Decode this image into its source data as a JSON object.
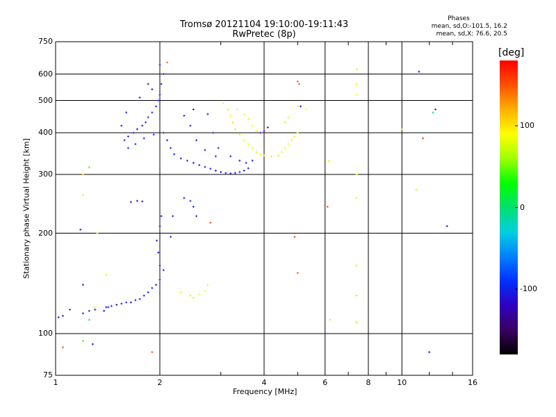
{
  "chart_data": {
    "type": "scatter",
    "title": "Tromsø 20121104 19:10:00-19:11:43",
    "subtitle": "RwPretec (8p)",
    "xlabel": "Frequency [MHz]",
    "ylabel": "Stationary phase Virtual Height [km]",
    "x_scale": "log",
    "y_scale": "log",
    "xlim": [
      1,
      16
    ],
    "ylim": [
      75,
      750
    ],
    "x_ticks": [
      "1",
      "2",
      "4",
      "6",
      "8",
      "10",
      "16"
    ],
    "x_tick_values": [
      1,
      2,
      4,
      6,
      8,
      10,
      16
    ],
    "x_grid_values": [
      2,
      4,
      6,
      8,
      10
    ],
    "x_minor_ticks": [
      3,
      5,
      7,
      9,
      12,
      14
    ],
    "y_ticks": [
      "75",
      "100",
      "200",
      "300",
      "400",
      "500",
      "600",
      "750"
    ],
    "y_tick_values": [
      75,
      100,
      200,
      300,
      400,
      500,
      600,
      750
    ],
    "y_grid_values": [
      100,
      200,
      300,
      400,
      500,
      600
    ],
    "grid": true,
    "colorbar": {
      "unit": "[deg]",
      "ticks": [
        "100",
        "0",
        "-100"
      ],
      "tick_values": [
        100,
        0,
        -100
      ],
      "range": [
        -180,
        180
      ],
      "colors": [
        "#000000",
        "#3a0060",
        "#3000c0",
        "#0030ff",
        "#0080ff",
        "#00d0e0",
        "#00e070",
        "#00ff00",
        "#a0ff00",
        "#ffff00",
        "#ffb000",
        "#ff5000",
        "#ff0000"
      ]
    },
    "stats": {
      "heading": "Phases",
      "line1": "mean, sd,O:-101.5, 16.2",
      "line2": "mean, sd,X:  76.6, 20.5"
    },
    "series": [
      {
        "values": [
          [
            1.02,
            112,
            -110
          ],
          [
            1.05,
            113,
            -100
          ],
          [
            1.1,
            118,
            -90
          ],
          [
            1.2,
            115,
            -105
          ],
          [
            1.25,
            117,
            -110
          ],
          [
            1.3,
            118,
            -95
          ],
          [
            1.38,
            117,
            -120
          ],
          [
            1.4,
            120,
            -110
          ],
          [
            1.45,
            121,
            -100
          ],
          [
            1.5,
            122,
            -115
          ],
          [
            1.55,
            123,
            -105
          ],
          [
            1.6,
            124,
            -100
          ],
          [
            1.65,
            124,
            -120
          ],
          [
            1.7,
            126,
            -110
          ],
          [
            1.75,
            127,
            -95
          ],
          [
            1.8,
            130,
            -115
          ],
          [
            1.85,
            133,
            -105
          ],
          [
            1.9,
            137,
            -100
          ],
          [
            1.95,
            140,
            -110
          ],
          [
            2.0,
            145,
            -100
          ],
          [
            2.0,
            160,
            -120
          ],
          [
            1.98,
            175,
            -110
          ],
          [
            1.96,
            190,
            -105
          ],
          [
            2.0,
            210,
            -115
          ],
          [
            2.02,
            225,
            -100
          ],
          [
            1.72,
            250,
            -120
          ],
          [
            1.78,
            249,
            -110
          ],
          [
            1.65,
            248,
            -105
          ],
          [
            2.35,
            255,
            -110
          ],
          [
            2.45,
            250,
            -100
          ],
          [
            2.5,
            240,
            -95
          ],
          [
            2.55,
            225,
            -120
          ],
          [
            1.58,
            380,
            -110
          ],
          [
            1.62,
            390,
            -105
          ],
          [
            1.68,
            400,
            -100
          ],
          [
            1.72,
            410,
            -115
          ],
          [
            1.78,
            420,
            -110
          ],
          [
            1.82,
            430,
            -100
          ],
          [
            1.85,
            445,
            -105
          ],
          [
            1.9,
            460,
            -110
          ],
          [
            1.95,
            480,
            -100
          ],
          [
            1.98,
            500,
            -95
          ],
          [
            2.0,
            520,
            -120
          ],
          [
            2.02,
            560,
            -105
          ],
          [
            2.05,
            600,
            -110
          ],
          [
            2.0,
            640,
            -100
          ],
          [
            1.85,
            560,
            -115
          ],
          [
            1.9,
            540,
            -110
          ],
          [
            1.75,
            510,
            -105
          ],
          [
            1.6,
            460,
            -100
          ],
          [
            1.55,
            420,
            -110
          ],
          [
            1.62,
            360,
            -95
          ],
          [
            1.7,
            370,
            -105
          ],
          [
            1.8,
            385,
            -110
          ],
          [
            1.92,
            395,
            -100
          ],
          [
            2.05,
            400,
            -115
          ],
          [
            2.1,
            380,
            -110
          ],
          [
            2.15,
            360,
            -100
          ],
          [
            2.2,
            345,
            -105
          ],
          [
            2.3,
            335,
            -110
          ],
          [
            2.4,
            330,
            -100
          ],
          [
            2.5,
            325,
            -115
          ],
          [
            2.6,
            320,
            -105
          ],
          [
            2.7,
            316,
            -110
          ],
          [
            2.8,
            312,
            -100
          ],
          [
            2.9,
            308,
            -120
          ],
          [
            3.0,
            305,
            -110
          ],
          [
            3.1,
            303,
            -105
          ],
          [
            3.2,
            302,
            -115
          ],
          [
            3.3,
            303,
            -110
          ],
          [
            3.4,
            305,
            -100
          ],
          [
            3.5,
            308,
            -110
          ],
          [
            3.6,
            313,
            -105
          ],
          [
            3.4,
            330,
            -115
          ],
          [
            3.2,
            340,
            -110
          ],
          [
            2.9,
            340,
            -100
          ],
          [
            2.7,
            355,
            -110
          ],
          [
            2.55,
            380,
            -105
          ],
          [
            2.45,
            420,
            -110
          ],
          [
            2.35,
            450,
            -100
          ],
          [
            2.5,
            470,
            -115
          ],
          [
            2.75,
            455,
            -105
          ],
          [
            2.85,
            400,
            -110
          ],
          [
            2.95,
            360,
            -100
          ],
          [
            3.55,
            325,
            -110
          ],
          [
            3.7,
            330,
            -105
          ],
          [
            3.9,
            400,
            -110
          ],
          [
            4.0,
            405,
            -100
          ],
          [
            4.1,
            415,
            -105
          ],
          [
            5.1,
            480,
            -110
          ],
          [
            11.2,
            610,
            -110
          ],
          [
            12.5,
            470,
            -100
          ],
          [
            13.5,
            210,
            -110
          ],
          [
            12.0,
            88,
            -105
          ],
          [
            1.28,
            93,
            -110
          ],
          [
            1.42,
            120,
            -100
          ],
          [
            1.18,
            205,
            -110
          ],
          [
            1.2,
            140,
            -110
          ],
          [
            2.05,
            155,
            -100
          ],
          [
            2.15,
            195,
            -110
          ],
          [
            2.18,
            225,
            -105
          ]
        ]
      },
      {
        "values": [
          [
            3.05,
            490,
            90
          ],
          [
            3.15,
            470,
            80
          ],
          [
            3.2,
            450,
            85
          ],
          [
            3.25,
            430,
            70
          ],
          [
            3.3,
            410,
            75
          ],
          [
            3.4,
            395,
            80
          ],
          [
            3.5,
            380,
            85
          ],
          [
            3.6,
            370,
            90
          ],
          [
            3.7,
            360,
            80
          ],
          [
            3.8,
            350,
            75
          ],
          [
            3.9,
            345,
            85
          ],
          [
            4.0,
            342,
            70
          ],
          [
            4.2,
            340,
            80
          ],
          [
            4.4,
            342,
            75
          ],
          [
            4.5,
            350,
            80
          ],
          [
            4.6,
            360,
            85
          ],
          [
            4.7,
            370,
            80
          ],
          [
            4.8,
            380,
            75
          ],
          [
            4.9,
            390,
            85
          ],
          [
            5.0,
            400,
            80
          ],
          [
            4.6,
            430,
            70
          ],
          [
            4.7,
            445,
            75
          ],
          [
            3.7,
            420,
            90
          ],
          [
            3.8,
            405,
            80
          ],
          [
            3.35,
            470,
            85
          ],
          [
            3.5,
            455,
            80
          ],
          [
            3.6,
            440,
            75
          ],
          [
            2.45,
            130,
            70
          ],
          [
            2.5,
            128,
            75
          ],
          [
            2.6,
            131,
            80
          ],
          [
            2.7,
            134,
            85
          ],
          [
            2.75,
            140,
            80
          ],
          [
            2.3,
            133,
            80
          ],
          [
            5.3,
            470,
            90
          ],
          [
            5.0,
            480,
            95
          ],
          [
            7.4,
            620,
            100
          ],
          [
            7.4,
            560,
            95
          ],
          [
            7.4,
            520,
            90
          ],
          [
            7.4,
            300,
            85
          ],
          [
            7.4,
            255,
            80
          ],
          [
            7.4,
            160,
            70
          ],
          [
            7.4,
            130,
            65
          ],
          [
            7.4,
            108,
            60
          ],
          [
            6.2,
            110,
            75
          ],
          [
            6.15,
            330,
            80
          ],
          [
            10.0,
            410,
            95
          ],
          [
            11.0,
            270,
            75
          ],
          [
            1.2,
            260,
            75
          ],
          [
            1.4,
            150,
            80
          ],
          [
            1.3,
            120,
            80
          ],
          [
            1.32,
            200,
            70
          ],
          [
            1.25,
            315,
            45
          ],
          [
            1.2,
            95,
            40
          ]
        ]
      },
      {
        "values": [
          [
            5.0,
            570,
            150
          ],
          [
            5.05,
            560,
            155
          ],
          [
            4.9,
            195,
            160
          ],
          [
            5.0,
            152,
            150
          ],
          [
            1.9,
            88,
            150
          ],
          [
            11.5,
            385,
            160
          ],
          [
            6.1,
            240,
            150
          ],
          [
            2.8,
            215,
            150
          ],
          [
            2.1,
            650,
            140
          ],
          [
            1.2,
            300,
            120
          ],
          [
            1.25,
            110,
            10
          ],
          [
            1.05,
            91,
            150
          ],
          [
            12.3,
            460,
            -10
          ]
        ]
      }
    ]
  }
}
